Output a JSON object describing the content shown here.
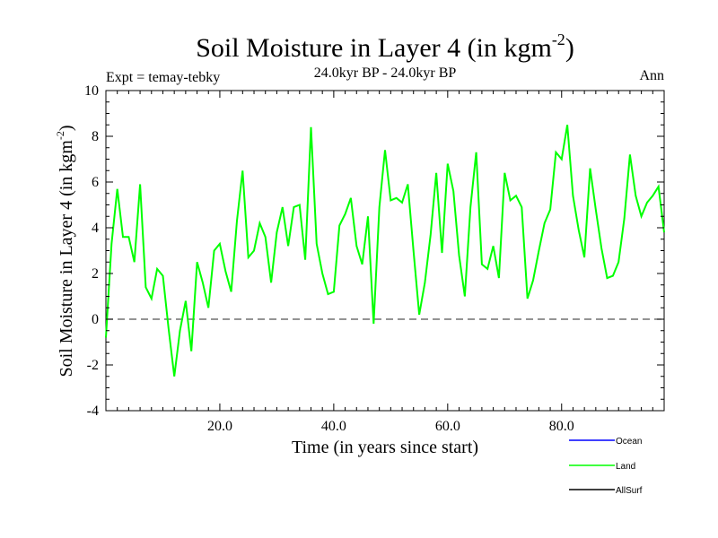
{
  "chart_data": {
    "type": "line",
    "title": "Soil Moisture in Layer 4 (in kgm",
    "title_superscript": "-2",
    "title_suffix": ")",
    "subtitle": "24.0kyr BP - 24.0kyr BP",
    "left_label": "Expt = temay-tebky",
    "right_label": "Ann",
    "xlabel": "Time (in years since start)",
    "ylabel": "Soil Moisture in Layer 4 (in kgm",
    "ylabel_superscript": "-2",
    "ylabel_suffix": ")",
    "xlim": [
      0,
      98
    ],
    "ylim": [
      -4,
      10
    ],
    "x_ticks": [
      20,
      40,
      60,
      80
    ],
    "x_tick_labels": [
      "20.0",
      "40.0",
      "60.0",
      "80.0"
    ],
    "y_ticks": [
      -4,
      -2,
      0,
      2,
      4,
      6,
      8,
      10
    ],
    "y_tick_labels": [
      "-4",
      "-2",
      "0",
      "2",
      "4",
      "6",
      "8",
      "10"
    ],
    "reference_line": 0,
    "series": [
      {
        "name": "Ocean",
        "color": "#0000ff",
        "values": []
      },
      {
        "name": "Land",
        "color": "#00ff00",
        "values": [
          -0.8,
          3.3,
          5.7,
          3.6,
          3.6,
          2.5,
          5.9,
          1.4,
          0.9,
          2.2,
          1.9,
          -0.4,
          -2.5,
          -0.5,
          0.8,
          -1.4,
          2.5,
          1.6,
          0.5,
          3.0,
          3.3,
          2.1,
          1.2,
          4.3,
          6.5,
          2.7,
          3.0,
          4.2,
          3.6,
          1.6,
          3.8,
          4.9,
          3.2,
          4.9,
          5.0,
          2.6,
          8.4,
          3.3,
          2.0,
          1.1,
          1.2,
          4.1,
          4.6,
          5.3,
          3.2,
          2.4,
          4.5,
          -0.2,
          4.9,
          7.4,
          5.2,
          5.3,
          5.1,
          5.9,
          3.0,
          0.2,
          1.6,
          3.7,
          6.4,
          2.9,
          6.8,
          5.6,
          2.8,
          1.0,
          4.9,
          7.3,
          2.4,
          2.2,
          3.2,
          1.8,
          6.4,
          5.2,
          5.4,
          4.9,
          0.9,
          1.7,
          3.0,
          4.2,
          4.8,
          7.3,
          7.0,
          8.5,
          5.4,
          3.9,
          2.7,
          6.6,
          4.8,
          3.1,
          1.8,
          1.9,
          2.5,
          4.4,
          7.2,
          5.4,
          4.5,
          5.1,
          5.4,
          5.8,
          3.8
        ]
      },
      {
        "name": "AllSurf",
        "color": "#000000",
        "values": []
      }
    ]
  }
}
